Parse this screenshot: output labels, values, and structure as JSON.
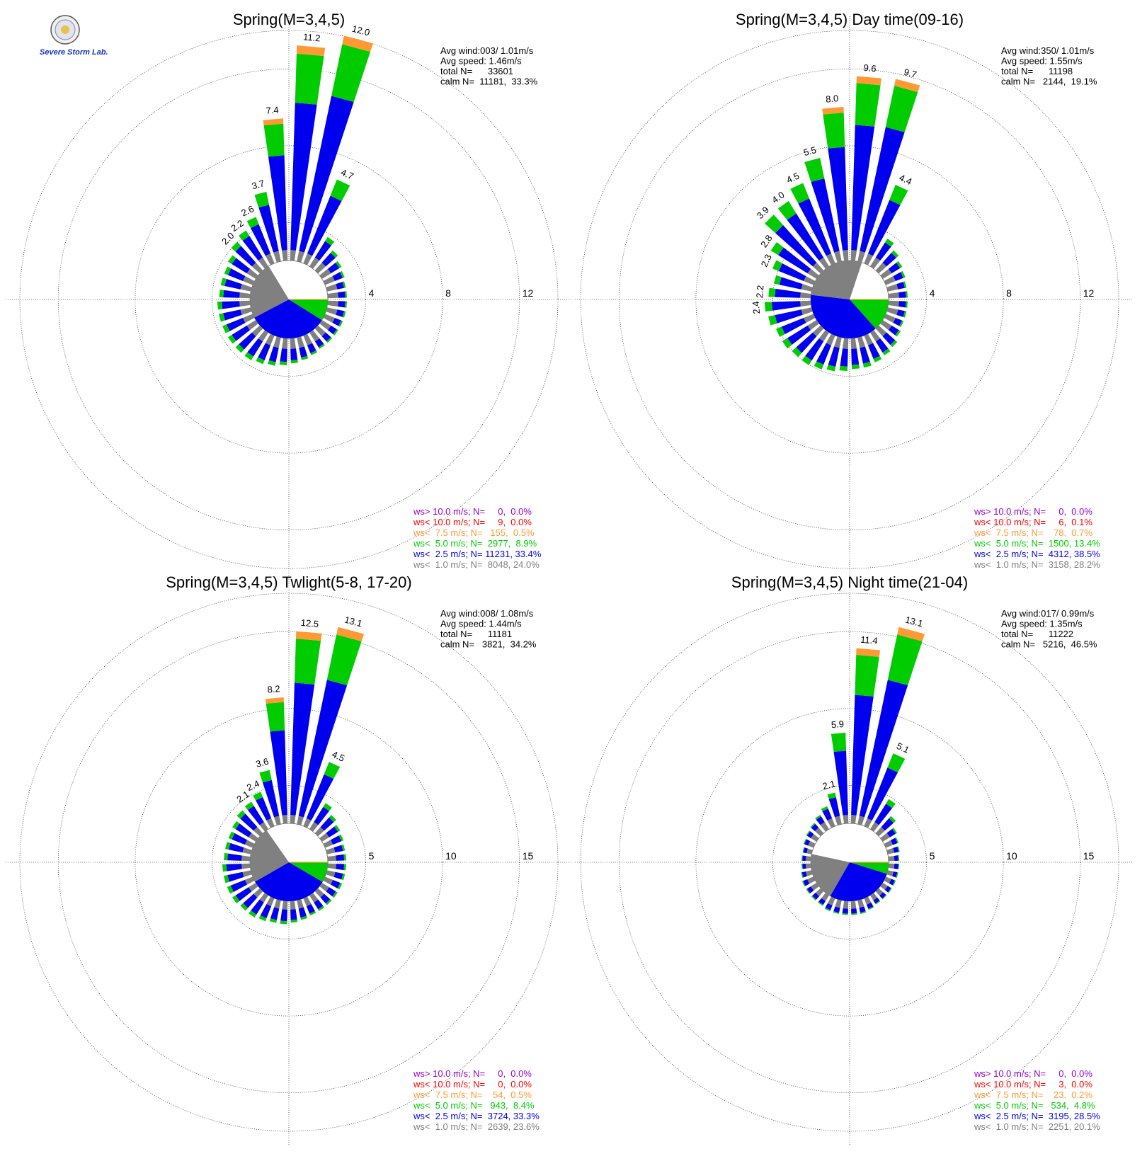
{
  "colors": {
    "gt10": "#9400D3",
    "lt10": "#ff0000",
    "lt75": "#ff9933",
    "lt5": "#00cc00",
    "lt25": "#0000ee",
    "lt1": "#808080",
    "grid": "#000000"
  },
  "logo": {
    "text": "Severe Storm Lab."
  },
  "chart_data": [
    {
      "type": "wind-rose",
      "title": "Spring(M=3,4,5)",
      "stats": {
        "line1": "Avg wind:003/ 1.01m/s",
        "line2": "Avg speed: 1.46m/s",
        "line3": "total N=      33601",
        "line4": "calm N=  11181,  33.3%"
      },
      "rings": [
        4,
        8,
        12
      ],
      "rlim": 14,
      "calm": {
        "lt1_pct": 24.0,
        "lt25_pct": 33.4,
        "lt5_pct": 8.9
      },
      "directions": [
        {
          "dir": 5,
          "value": 11.2,
          "label": "11.2"
        },
        {
          "dir": 15,
          "value": 12.0,
          "label": "12.0"
        },
        {
          "dir": 25,
          "value": 4.7,
          "label": "4.7"
        },
        {
          "dir": 35,
          "value": 1.8
        },
        {
          "dir": 45,
          "value": 1.4
        },
        {
          "dir": 55,
          "value": 1.2
        },
        {
          "dir": 65,
          "value": 1.1
        },
        {
          "dir": 75,
          "value": 1.0
        },
        {
          "dir": 85,
          "value": 1.0
        },
        {
          "dir": 95,
          "value": 1.0
        },
        {
          "dir": 105,
          "value": 1.0
        },
        {
          "dir": 115,
          "value": 1.0
        },
        {
          "dir": 125,
          "value": 1.0
        },
        {
          "dir": 135,
          "value": 1.0
        },
        {
          "dir": 145,
          "value": 1.0
        },
        {
          "dir": 155,
          "value": 1.1
        },
        {
          "dir": 165,
          "value": 1.2
        },
        {
          "dir": 175,
          "value": 1.3
        },
        {
          "dir": 185,
          "value": 1.4
        },
        {
          "dir": 195,
          "value": 1.5
        },
        {
          "dir": 205,
          "value": 1.6
        },
        {
          "dir": 215,
          "value": 1.7
        },
        {
          "dir": 225,
          "value": 1.7
        },
        {
          "dir": 235,
          "value": 1.7
        },
        {
          "dir": 245,
          "value": 1.7
        },
        {
          "dir": 255,
          "value": 1.7
        },
        {
          "dir": 265,
          "value": 1.7
        },
        {
          "dir": 275,
          "value": 1.6
        },
        {
          "dir": 285,
          "value": 1.6
        },
        {
          "dir": 295,
          "value": 1.6
        },
        {
          "dir": 305,
          "value": 1.7
        },
        {
          "dir": 315,
          "value": 2.0,
          "label": "2.0"
        },
        {
          "dir": 325,
          "value": 2.2,
          "label": "2.2"
        },
        {
          "dir": 335,
          "value": 2.6,
          "label": "2.6"
        },
        {
          "dir": 345,
          "value": 3.7,
          "label": "3.7"
        },
        {
          "dir": 355,
          "value": 7.4,
          "label": "7.4"
        }
      ],
      "legend": [
        {
          "text": "ws> 10.0 m/s; N=     0,  0.0%",
          "color": "gt10"
        },
        {
          "text": "ws< 10.0 m/s; N=     9,  0.0%",
          "color": "lt10"
        },
        {
          "text": "ws<  7.5 m/s; N=   155,  0.5%",
          "color": "lt75"
        },
        {
          "text": "ws<  5.0 m/s; N=  2977,  8.9%",
          "color": "lt5"
        },
        {
          "text": "ws<  2.5 m/s; N= 11231, 33.4%",
          "color": "lt25"
        },
        {
          "text": "ws<  1.0 m/s; N=  8048, 24.0%",
          "color": "lt1"
        }
      ]
    },
    {
      "type": "wind-rose",
      "title": "Spring(M=3,4,5) Day time(09-16)",
      "stats": {
        "line1": "Avg wind:350/ 1.01m/s",
        "line2": "Avg speed: 1.55m/s",
        "line3": "total N=      11198",
        "line4": "calm N=   2144,  19.1%"
      },
      "rings": [
        4,
        8,
        12
      ],
      "rlim": 14,
      "calm": {
        "lt1_pct": 28.2,
        "lt25_pct": 38.5,
        "lt5_pct": 13.4
      },
      "directions": [
        {
          "dir": 5,
          "value": 9.6,
          "label": "9.6"
        },
        {
          "dir": 15,
          "value": 9.7,
          "label": "9.7"
        },
        {
          "dir": 25,
          "value": 4.4,
          "label": "4.4"
        },
        {
          "dir": 35,
          "value": 1.7
        },
        {
          "dir": 45,
          "value": 1.4
        },
        {
          "dir": 55,
          "value": 1.2
        },
        {
          "dir": 65,
          "value": 1.1
        },
        {
          "dir": 75,
          "value": 1.0
        },
        {
          "dir": 85,
          "value": 1.0
        },
        {
          "dir": 95,
          "value": 1.0
        },
        {
          "dir": 105,
          "value": 1.0
        },
        {
          "dir": 115,
          "value": 1.0
        },
        {
          "dir": 125,
          "value": 1.1
        },
        {
          "dir": 135,
          "value": 1.3
        },
        {
          "dir": 145,
          "value": 1.4
        },
        {
          "dir": 155,
          "value": 1.5
        },
        {
          "dir": 165,
          "value": 1.6
        },
        {
          "dir": 175,
          "value": 1.6
        },
        {
          "dir": 185,
          "value": 1.7
        },
        {
          "dir": 195,
          "value": 1.8
        },
        {
          "dir": 205,
          "value": 1.9
        },
        {
          "dir": 215,
          "value": 2.0
        },
        {
          "dir": 225,
          "value": 2.0
        },
        {
          "dir": 235,
          "value": 2.1
        },
        {
          "dir": 245,
          "value": 2.1
        },
        {
          "dir": 255,
          "value": 2.3
        },
        {
          "dir": 265,
          "value": 2.4,
          "label": "2.4"
        },
        {
          "dir": 275,
          "value": 2.2,
          "label": "2.2"
        },
        {
          "dir": 285,
          "value": 2.0
        },
        {
          "dir": 295,
          "value": 2.3,
          "label": "2.3"
        },
        {
          "dir": 305,
          "value": 2.8,
          "label": "2.8"
        },
        {
          "dir": 315,
          "value": 3.9,
          "label": "3.9"
        },
        {
          "dir": 325,
          "value": 4.0,
          "label": "4.0"
        },
        {
          "dir": 335,
          "value": 4.5,
          "label": "4.5"
        },
        {
          "dir": 345,
          "value": 5.5,
          "label": "5.5"
        },
        {
          "dir": 355,
          "value": 8.0,
          "label": "8.0"
        }
      ],
      "legend": [
        {
          "text": "ws> 10.0 m/s; N=     0,  0.0%",
          "color": "gt10"
        },
        {
          "text": "ws< 10.0 m/s; N=     6,  0.1%",
          "color": "lt10"
        },
        {
          "text": "ws<  7.5 m/s; N=    78,  0.7%",
          "color": "lt75"
        },
        {
          "text": "ws<  5.0 m/s; N=  1500, 13.4%",
          "color": "lt5"
        },
        {
          "text": "ws<  2.5 m/s; N=  4312, 38.5%",
          "color": "lt25"
        },
        {
          "text": "ws<  1.0 m/s; N=  3158, 28.2%",
          "color": "lt1"
        }
      ]
    },
    {
      "type": "wind-rose",
      "title": "Spring(M=3,4,5) Twlight(5-8, 17-20)",
      "stats": {
        "line1": "Avg wind:008/ 1.08m/s",
        "line2": "Avg speed: 1.44m/s",
        "line3": "total N=      11181",
        "line4": "calm N=   3821,  34.2%"
      },
      "rings": [
        5,
        10,
        15
      ],
      "rlim": 17.5,
      "calm": {
        "lt1_pct": 23.6,
        "lt25_pct": 33.3,
        "lt5_pct": 8.4
      },
      "directions": [
        {
          "dir": 5,
          "value": 12.5,
          "label": "12.5"
        },
        {
          "dir": 15,
          "value": 13.1,
          "label": "13.1"
        },
        {
          "dir": 25,
          "value": 4.5,
          "label": "4.5"
        },
        {
          "dir": 35,
          "value": 2.0
        },
        {
          "dir": 45,
          "value": 1.6
        },
        {
          "dir": 55,
          "value": 1.4
        },
        {
          "dir": 65,
          "value": 1.3
        },
        {
          "dir": 75,
          "value": 1.2
        },
        {
          "dir": 85,
          "value": 1.2
        },
        {
          "dir": 95,
          "value": 1.2
        },
        {
          "dir": 105,
          "value": 1.2
        },
        {
          "dir": 115,
          "value": 1.2
        },
        {
          "dir": 125,
          "value": 1.2
        },
        {
          "dir": 135,
          "value": 1.2
        },
        {
          "dir": 145,
          "value": 1.2
        },
        {
          "dir": 155,
          "value": 1.2
        },
        {
          "dir": 165,
          "value": 1.3
        },
        {
          "dir": 175,
          "value": 1.4
        },
        {
          "dir": 185,
          "value": 1.5
        },
        {
          "dir": 195,
          "value": 1.5
        },
        {
          "dir": 205,
          "value": 1.6
        },
        {
          "dir": 215,
          "value": 1.7
        },
        {
          "dir": 225,
          "value": 1.7
        },
        {
          "dir": 235,
          "value": 1.8
        },
        {
          "dir": 245,
          "value": 1.8
        },
        {
          "dir": 255,
          "value": 1.8
        },
        {
          "dir": 265,
          "value": 1.8
        },
        {
          "dir": 275,
          "value": 1.7
        },
        {
          "dir": 285,
          "value": 1.7
        },
        {
          "dir": 295,
          "value": 1.7
        },
        {
          "dir": 305,
          "value": 1.8
        },
        {
          "dir": 315,
          "value": 2.0
        },
        {
          "dir": 325,
          "value": 2.1,
          "label": "2.1"
        },
        {
          "dir": 335,
          "value": 2.4,
          "label": "2.4"
        },
        {
          "dir": 345,
          "value": 3.6,
          "label": "3.6"
        },
        {
          "dir": 355,
          "value": 8.2,
          "label": "8.2"
        }
      ],
      "legend": [
        {
          "text": "ws> 10.0 m/s; N=     0,  0.0%",
          "color": "gt10"
        },
        {
          "text": "ws< 10.0 m/s; N=     0,  0.0%",
          "color": "lt10"
        },
        {
          "text": "ws<  7.5 m/s; N=    54,  0.5%",
          "color": "lt75"
        },
        {
          "text": "ws<  5.0 m/s; N=   943,  8.4%",
          "color": "lt5"
        },
        {
          "text": "ws<  2.5 m/s; N=  3724, 33.3%",
          "color": "lt25"
        },
        {
          "text": "ws<  1.0 m/s; N=  2639, 23.6%",
          "color": "lt1"
        }
      ]
    },
    {
      "type": "wind-rose",
      "title": "Spring(M=3,4,5) Night time(21-04)",
      "stats": {
        "line1": "Avg wind:017/ 0.99m/s",
        "line2": "Avg speed: 1.35m/s",
        "line3": "total N=      11222",
        "line4": "calm N=   5216,  46.5%"
      },
      "rings": [
        5,
        10,
        15
      ],
      "rlim": 17.5,
      "calm": {
        "lt1_pct": 20.1,
        "lt25_pct": 28.5,
        "lt5_pct": 4.8
      },
      "directions": [
        {
          "dir": 5,
          "value": 11.4,
          "label": "11.4"
        },
        {
          "dir": 15,
          "value": 13.1,
          "label": "13.1"
        },
        {
          "dir": 25,
          "value": 5.1,
          "label": "5.1"
        },
        {
          "dir": 35,
          "value": 2.3
        },
        {
          "dir": 45,
          "value": 1.5
        },
        {
          "dir": 55,
          "value": 1.1
        },
        {
          "dir": 65,
          "value": 0.9
        },
        {
          "dir": 75,
          "value": 0.8
        },
        {
          "dir": 85,
          "value": 0.7
        },
        {
          "dir": 95,
          "value": 0.7
        },
        {
          "dir": 105,
          "value": 0.7
        },
        {
          "dir": 115,
          "value": 0.7
        },
        {
          "dir": 125,
          "value": 0.7
        },
        {
          "dir": 135,
          "value": 0.7
        },
        {
          "dir": 145,
          "value": 0.7
        },
        {
          "dir": 155,
          "value": 0.8
        },
        {
          "dir": 165,
          "value": 0.9
        },
        {
          "dir": 175,
          "value": 0.9
        },
        {
          "dir": 185,
          "value": 0.9
        },
        {
          "dir": 195,
          "value": 0.9
        },
        {
          "dir": 205,
          "value": 0.9
        },
        {
          "dir": 215,
          "value": 0.8
        },
        {
          "dir": 225,
          "value": 0.8
        },
        {
          "dir": 235,
          "value": 0.8
        },
        {
          "dir": 245,
          "value": 0.8
        },
        {
          "dir": 255,
          "value": 0.7
        },
        {
          "dir": 265,
          "value": 0.6
        },
        {
          "dir": 275,
          "value": 0.6
        },
        {
          "dir": 285,
          "value": 0.6
        },
        {
          "dir": 295,
          "value": 0.7
        },
        {
          "dir": 305,
          "value": 0.8
        },
        {
          "dir": 315,
          "value": 0.9
        },
        {
          "dir": 325,
          "value": 1.1
        },
        {
          "dir": 335,
          "value": 1.4
        },
        {
          "dir": 345,
          "value": 2.1,
          "label": "2.1"
        },
        {
          "dir": 355,
          "value": 5.9,
          "label": "5.9"
        }
      ],
      "legend": [
        {
          "text": "ws> 10.0 m/s; N=     0,  0.0%",
          "color": "gt10"
        },
        {
          "text": "ws< 10.0 m/s; N=     3,  0.0%",
          "color": "lt10"
        },
        {
          "text": "ws<  7.5 m/s; N=    23,  0.2%",
          "color": "lt75"
        },
        {
          "text": "ws<  5.0 m/s; N=   534,  4.8%",
          "color": "lt5"
        },
        {
          "text": "ws<  2.5 m/s; N=  3195, 28.5%",
          "color": "lt25"
        },
        {
          "text": "ws<  1.0 m/s; N=  2251, 20.1%",
          "color": "lt1"
        }
      ]
    }
  ]
}
